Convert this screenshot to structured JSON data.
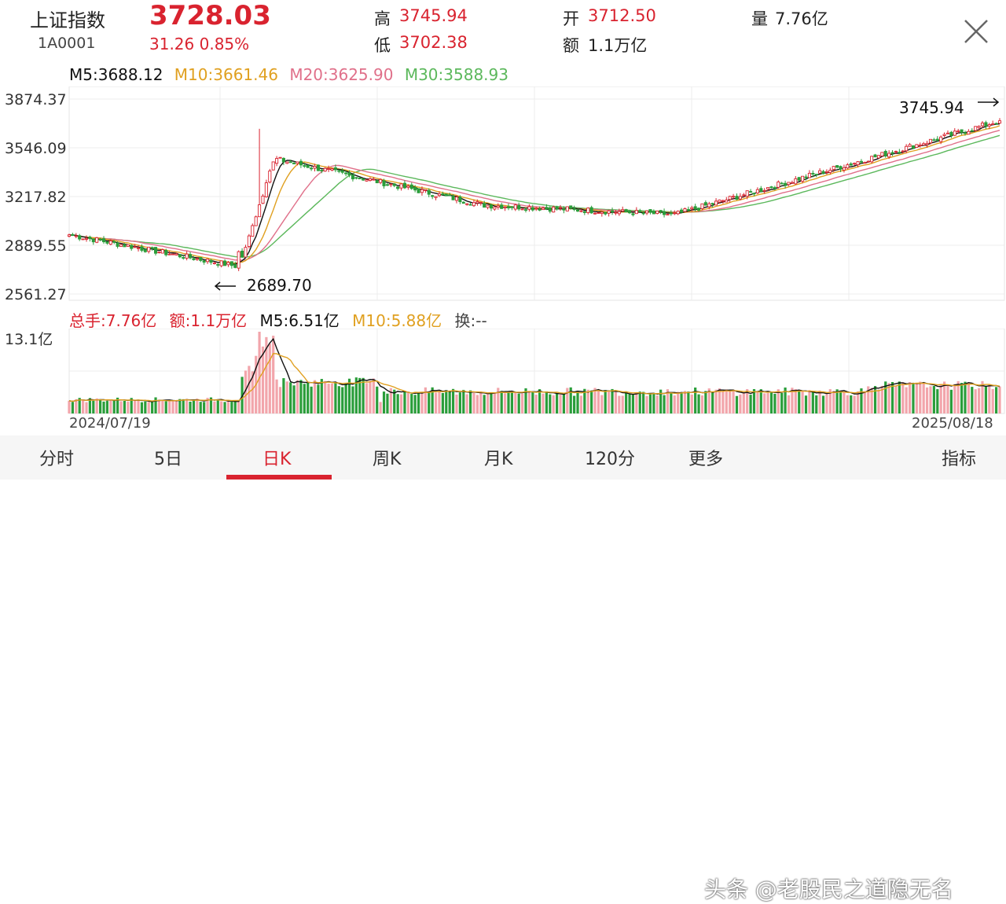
{
  "header": {
    "name": "上证指数",
    "code": "1A0001",
    "price": "3728.03",
    "change": "31.26  0.85%",
    "high_label": "高",
    "high": "3745.94",
    "low_label": "低",
    "low": "3702.38",
    "open_label": "开",
    "open": "3712.50",
    "amount_label": "额",
    "amount": "1.1万亿",
    "volume_label": "量",
    "volume": "7.76亿"
  },
  "ma_legend": {
    "m5": "M5:3688.12",
    "m10": "M10:3661.46",
    "m20": "M20:3625.90",
    "m30": "M30:3588.93"
  },
  "price_axis": [
    "3874.37",
    "3546.09",
    "3217.82",
    "2889.55",
    "2561.27"
  ],
  "annotations": {
    "max_label": "3745.94",
    "min_label": "2689.70"
  },
  "volume_legend": {
    "total": "总手:7.76亿",
    "amount": "额:1.1万亿",
    "m5": "M5:6.51亿",
    "m10": "M10:5.88亿",
    "turnover": "换:--"
  },
  "volume_axis_max": "13.1亿",
  "dates": {
    "start": "2024/07/19",
    "end": "2025/08/18"
  },
  "tabs": [
    "分时",
    "5日",
    "日K",
    "周K",
    "月K",
    "120分",
    "更多",
    "指标"
  ],
  "active_tab": "日K",
  "watermark": "头条 @老股民之道隐无名",
  "colors": {
    "up": "#d9232f",
    "down": "#2a9d3a",
    "m5": "#111111",
    "m10": "#e0a020",
    "m20": "#e0708a",
    "m30": "#5cb85c"
  },
  "chart_data": {
    "type": "candlestick",
    "title": "上证指数 日K",
    "x": [
      "2024/07/19",
      "2024/09/24",
      "2024/10/08",
      "2025/01/13",
      "2025/04/07",
      "2025/08/18"
    ],
    "close_approx": [
      2960,
      2750,
      3489,
      3160,
      3096,
      3728
    ],
    "ylim": [
      2561.27,
      3874.37
    ],
    "high_max": 3745.94,
    "low_min": 2689.7,
    "volume_max": "13.1亿"
  }
}
